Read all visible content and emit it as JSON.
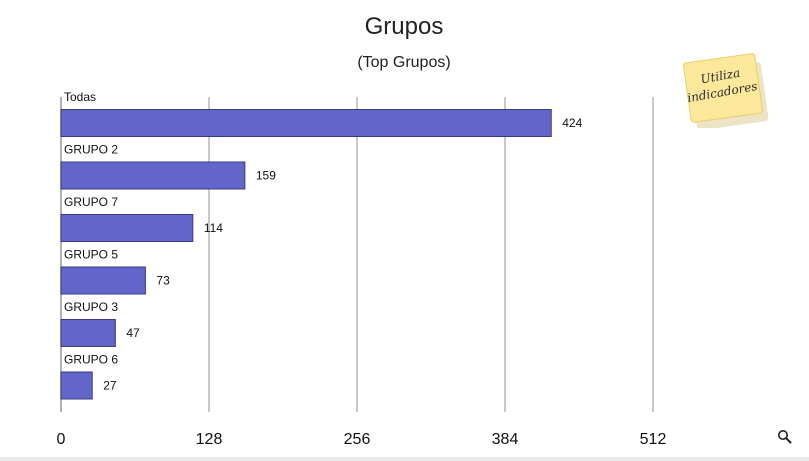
{
  "chart_data": {
    "type": "bar",
    "orientation": "horizontal",
    "title": "Grupos",
    "subtitle": "(Top Grupos)",
    "categories": [
      "Todas",
      "GRUPO 2",
      "GRUPO 7",
      "GRUPO 5",
      "GRUPO 3",
      "GRUPO 6"
    ],
    "values": [
      424,
      159,
      114,
      73,
      47,
      27
    ],
    "xlim": [
      0,
      608
    ],
    "xticks": [
      0,
      128,
      256,
      384,
      512
    ],
    "xtick_labels": [
      "0",
      "128",
      "256",
      "384",
      "512"
    ],
    "grid": true,
    "bar_color": "#6366c9"
  },
  "sticky_note": {
    "text_line1": "Utiliza",
    "text_line2": "indicadores"
  },
  "icons": {
    "zoom": "magnifier-icon"
  }
}
